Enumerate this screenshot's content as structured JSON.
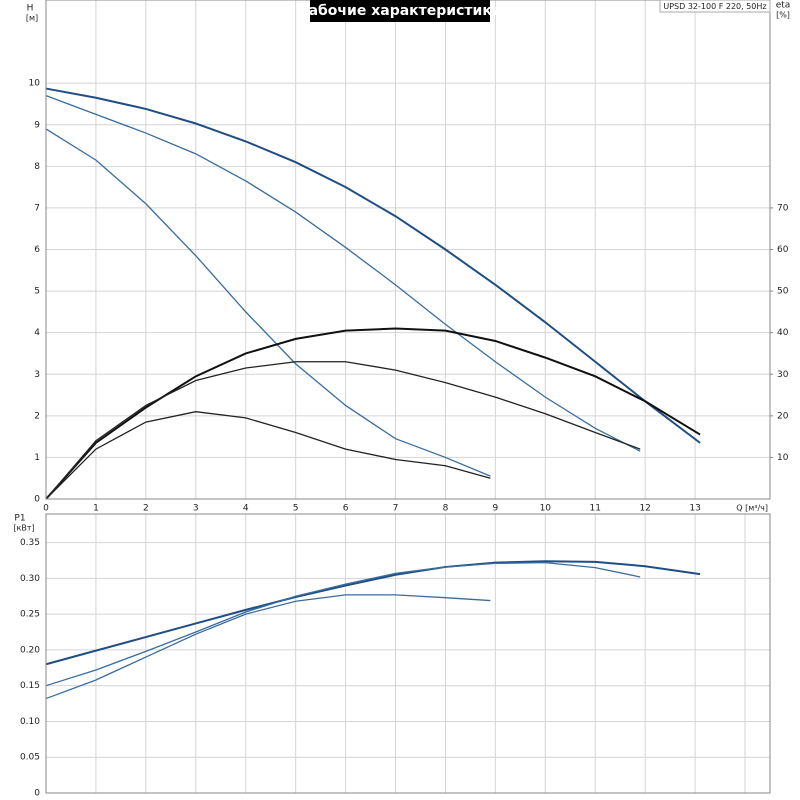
{
  "chart_data": [
    {
      "type": "line",
      "title": "Рабочие характеристики",
      "subtitle": "UPSD 32-100 F 220, 50Hz",
      "y_label": "H",
      "y_unit": "[м]",
      "y2_label": "eta",
      "y2_unit": "[%]",
      "x_label": "Q [м³/ч]",
      "xlim": [
        0,
        14.5
      ],
      "xticks": [
        0,
        1,
        2,
        3,
        4,
        5,
        6,
        7,
        8,
        9,
        10,
        11,
        12,
        13
      ],
      "ylim": [
        0,
        12
      ],
      "yticks": [
        0,
        1,
        2,
        3,
        4,
        5,
        6,
        7,
        8,
        9,
        10
      ],
      "y2lim": [
        0,
        120
      ],
      "y2ticks": [
        10,
        20,
        30,
        40,
        50,
        60,
        70
      ],
      "grid": true,
      "series": [
        {
          "color": "#1f4e85",
          "x": [
            0,
            1,
            2,
            3,
            4,
            5,
            6,
            7,
            8,
            9,
            10,
            11,
            12,
            13.1
          ],
          "values": [
            9.87,
            9.65,
            9.38,
            9.03,
            8.6,
            8.1,
            7.5,
            6.8,
            6.0,
            5.15,
            4.25,
            3.3,
            2.35,
            1.35
          ]
        },
        {
          "color": "#3a6c9e",
          "x": [
            0,
            1,
            2,
            3,
            4,
            5,
            6,
            7,
            8,
            9,
            10,
            11,
            11.9
          ],
          "values": [
            9.7,
            9.25,
            8.8,
            8.3,
            7.65,
            6.9,
            6.05,
            5.15,
            4.2,
            3.3,
            2.45,
            1.7,
            1.15
          ]
        },
        {
          "color": "#3a6c9e",
          "x": [
            0,
            1,
            2,
            3,
            4,
            5,
            6,
            7,
            8,
            8.9
          ],
          "values": [
            8.9,
            8.15,
            7.1,
            5.85,
            4.5,
            3.25,
            2.25,
            1.45,
            1.0,
            0.55
          ]
        },
        {
          "color": "#111111",
          "axis": "y2",
          "x": [
            0,
            1,
            2,
            3,
            4,
            5,
            6,
            7,
            8,
            9,
            10,
            11,
            12,
            13.1
          ],
          "values": [
            0,
            13.5,
            22,
            29.5,
            35,
            38.5,
            40.5,
            41,
            40.5,
            38,
            34,
            29.5,
            23.5,
            15.5
          ]
        },
        {
          "color": "#222222",
          "axis": "y2",
          "x": [
            0,
            1,
            2,
            3,
            4,
            5,
            6,
            7,
            8,
            9,
            10,
            11,
            11.9
          ],
          "values": [
            0,
            14,
            22.5,
            28.5,
            31.5,
            33,
            33,
            31,
            28,
            24.5,
            20.5,
            16,
            12
          ]
        },
        {
          "color": "#222222",
          "axis": "y2",
          "x": [
            0,
            1,
            2,
            3,
            4,
            5,
            6,
            7,
            8,
            8.9
          ],
          "values": [
            0,
            12,
            18.5,
            21,
            19.5,
            16,
            12,
            9.5,
            8,
            5
          ]
        }
      ]
    },
    {
      "type": "line",
      "y_label": "P1",
      "y_unit": "[кВт]",
      "xlim": [
        0,
        14.5
      ],
      "gridx": [
        0,
        1,
        2,
        3,
        4,
        5,
        6,
        7,
        8,
        9,
        10,
        11,
        12,
        13,
        14
      ],
      "ylim": [
        0,
        0.39
      ],
      "yticks": [
        0,
        0.05,
        {
          "value": 0.1,
          "label": "0.10"
        },
        0.15,
        {
          "value": 0.2,
          "label": "0.20"
        },
        0.25,
        {
          "value": 0.3,
          "label": "0.30"
        },
        0.35
      ],
      "grid": true,
      "series": [
        {
          "color": "#1f4e85",
          "x": [
            0,
            1,
            2,
            3,
            4,
            5,
            6,
            7,
            8,
            9,
            10,
            11,
            12,
            13.1
          ],
          "values": [
            0.18,
            0.199,
            0.218,
            0.237,
            0.256,
            0.274,
            0.29,
            0.305,
            0.316,
            0.322,
            0.324,
            0.323,
            0.317,
            0.306
          ]
        },
        {
          "color": "#3a6c9e",
          "x": [
            0,
            1,
            2,
            3,
            4,
            5,
            6,
            7,
            8,
            9,
            10,
            11,
            11.9
          ],
          "values": [
            0.15,
            0.172,
            0.198,
            0.225,
            0.253,
            0.275,
            0.292,
            0.307,
            0.316,
            0.321,
            0.322,
            0.315,
            0.302
          ]
        },
        {
          "color": "#3a6c9e",
          "x": [
            0,
            1,
            2,
            3,
            4,
            5,
            6,
            7,
            8,
            8.9
          ],
          "values": [
            0.132,
            0.158,
            0.19,
            0.222,
            0.25,
            0.268,
            0.277,
            0.277,
            0.273,
            0.269
          ]
        }
      ]
    }
  ]
}
